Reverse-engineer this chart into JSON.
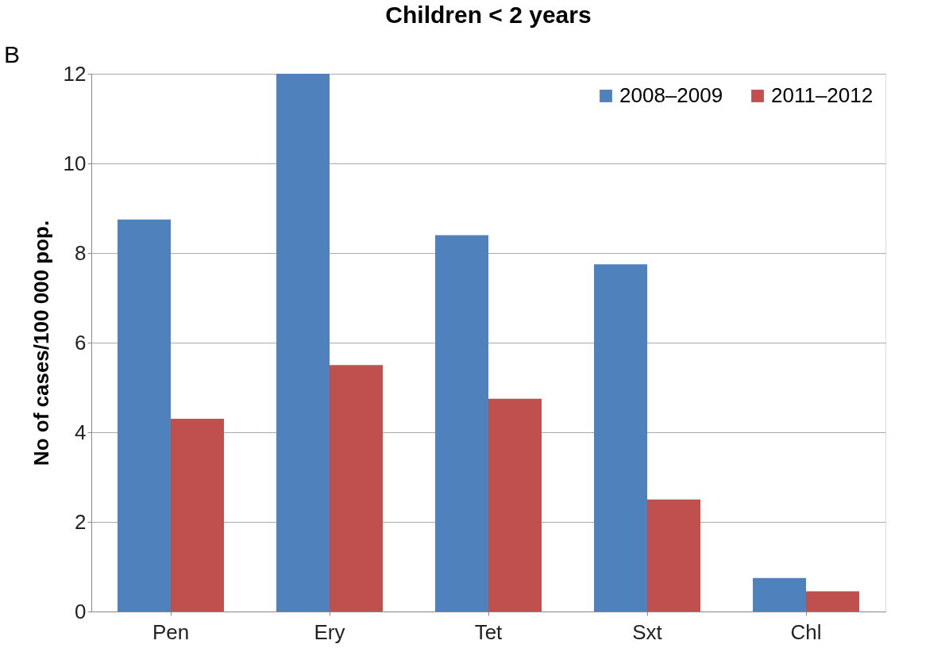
{
  "chart_data": {
    "type": "bar",
    "title": "Children < 2 years",
    "ylabel": "No of cases/100 000 pop.",
    "annotations": [
      "B"
    ],
    "categories": [
      "Pen",
      "Ery",
      "Tet",
      "Sxt",
      "Chl"
    ],
    "series": [
      {
        "name": "2008–2009",
        "color": "#4f81bd",
        "values": [
          8.75,
          12.0,
          8.4,
          7.75,
          0.75
        ]
      },
      {
        "name": "2011–2012",
        "color": "#c0504d",
        "values": [
          4.3,
          5.5,
          4.75,
          2.5,
          0.45
        ]
      }
    ],
    "ylim": [
      0,
      12
    ],
    "yticks": [
      0,
      2,
      4,
      6,
      8,
      10,
      12
    ],
    "grid": "y",
    "legend": "top right"
  }
}
